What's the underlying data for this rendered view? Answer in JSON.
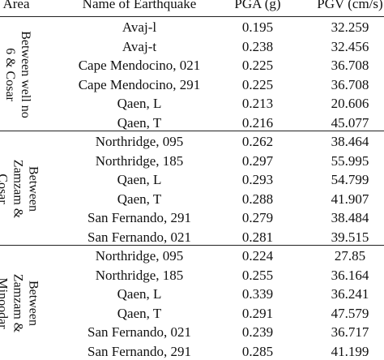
{
  "table": {
    "headers": {
      "area": "Area",
      "name": "Name of Earthquake",
      "pga": "PGA (g)",
      "pgv": "PGV (cm/s)"
    },
    "groups": [
      {
        "area_lines": [
          "Between well no",
          "6 & Cosar"
        ],
        "rows": [
          {
            "name": "Avaj-l",
            "pga": "0.195",
            "pgv": "32.259"
          },
          {
            "name": "Avaj-t",
            "pga": "0.238",
            "pgv": "32.456"
          },
          {
            "name": "Cape Mendocino, 021",
            "pga": "0.225",
            "pgv": "36.708"
          },
          {
            "name": "Cape Mendocino, 291",
            "pga": "0.225",
            "pgv": "36.708"
          },
          {
            "name": "Qaen, L",
            "pga": "0.213",
            "pgv": "20.606"
          },
          {
            "name": "Qaen, T",
            "pga": "0.216",
            "pgv": "45.077"
          }
        ]
      },
      {
        "area_lines": [
          "Between",
          "Zamzam &",
          "Cosar"
        ],
        "rows": [
          {
            "name": "Northridge, 095",
            "pga": "0.262",
            "pgv": "38.464"
          },
          {
            "name": "Northridge, 185",
            "pga": "0.297",
            "pgv": "55.995"
          },
          {
            "name": "Qaen, L",
            "pga": "0.293",
            "pgv": "54.799"
          },
          {
            "name": "Qaen, T",
            "pga": "0.288",
            "pgv": "41.907"
          },
          {
            "name": "San Fernando, 291",
            "pga": "0.279",
            "pgv": "38.484"
          },
          {
            "name": "San Fernando, 021",
            "pga": "0.281",
            "pgv": "39.515"
          }
        ]
      },
      {
        "area_lines": [
          "Between",
          "Zamzam &",
          "Minoodar"
        ],
        "rows": [
          {
            "name": "Northridge, 095",
            "pga": "0.224",
            "pgv": "27.85"
          },
          {
            "name": "Northridge, 185",
            "pga": "0.255",
            "pgv": "36.164"
          },
          {
            "name": "Qaen, L",
            "pga": "0.339",
            "pgv": "36.241"
          },
          {
            "name": "Qaen, T",
            "pga": "0.291",
            "pgv": "47.579"
          },
          {
            "name": "San Fernando, 021",
            "pga": "0.239",
            "pgv": "36.717"
          },
          {
            "name": "San Fernando, 291",
            "pga": "0.285",
            "pgv": "41.199"
          }
        ]
      }
    ]
  }
}
